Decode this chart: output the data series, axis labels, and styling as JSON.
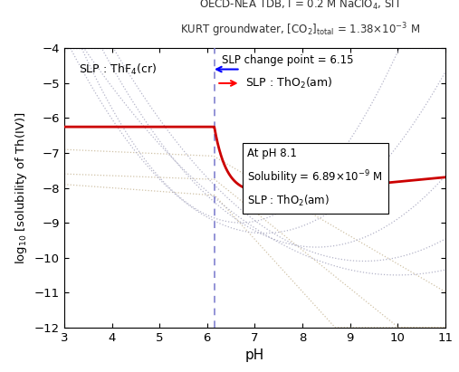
{
  "xlabel": "pH",
  "ylabel": "log$_{10}$ [solubility of Th(IV)]",
  "xlim": [
    3,
    11
  ],
  "ylim": [
    -12,
    -4
  ],
  "change_point_pH": 6.15,
  "main_line_color": "#cc0000",
  "dashed_line_color": "#7777cc",
  "dotted_line_color_warm": "#c8b898",
  "dotted_line_color_cool": "#a8a8c0",
  "background_color": "#ffffff",
  "xticks": [
    3,
    4,
    5,
    6,
    7,
    8,
    9,
    10,
    11
  ],
  "yticks": [
    -12,
    -11,
    -10,
    -9,
    -8,
    -7,
    -6,
    -5,
    -4
  ]
}
